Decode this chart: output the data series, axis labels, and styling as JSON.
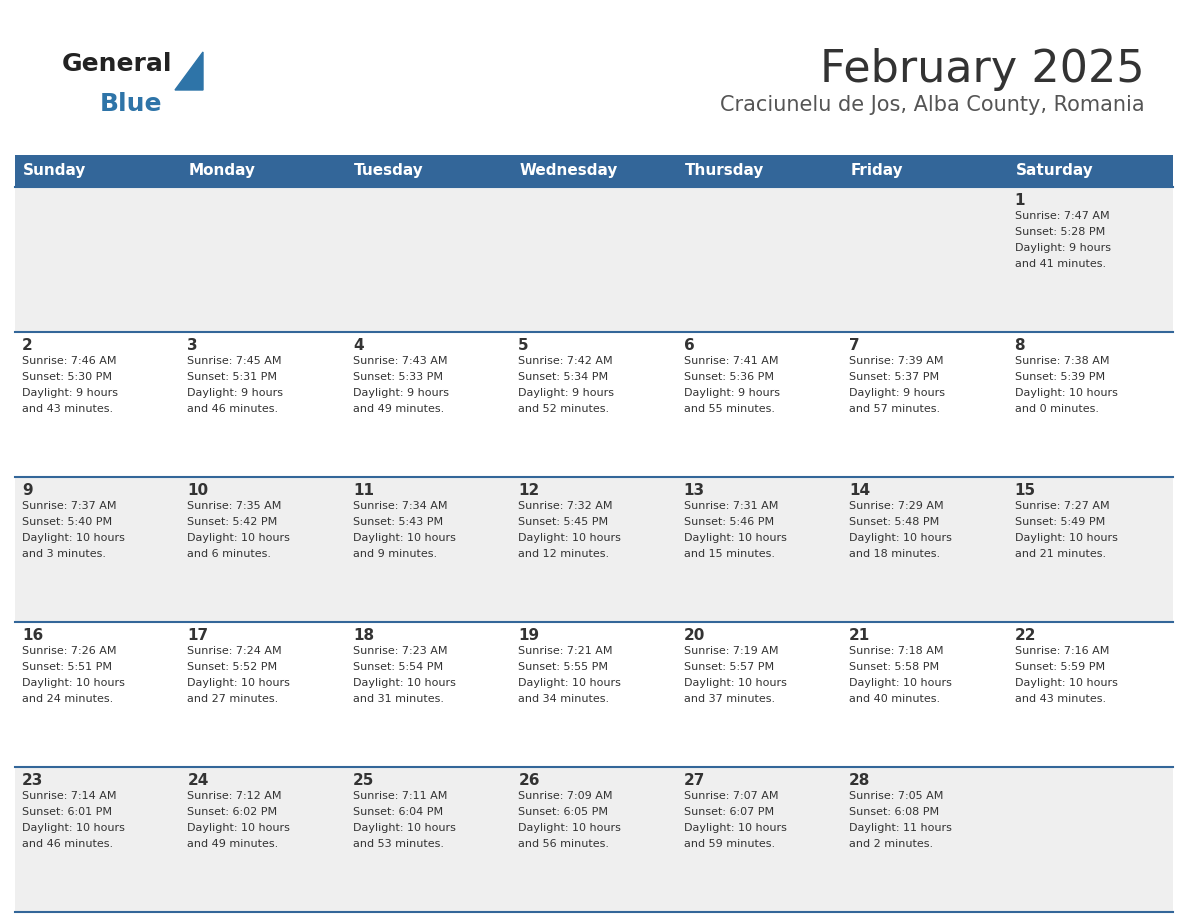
{
  "title": "February 2025",
  "subtitle": "Craciunelu de Jos, Alba County, Romania",
  "days_of_week": [
    "Sunday",
    "Monday",
    "Tuesday",
    "Wednesday",
    "Thursday",
    "Friday",
    "Saturday"
  ],
  "header_bg": "#336699",
  "header_text_color": "#FFFFFF",
  "row_bg_odd": "#EFEFEF",
  "row_bg_even": "#FFFFFF",
  "cell_border_color": "#336699",
  "title_color": "#333333",
  "subtitle_color": "#555555",
  "day_num_color": "#333333",
  "cell_text_color": "#333333",
  "logo_text_color": "#222222",
  "logo_blue_color": "#2E74A8",
  "calendar": [
    [
      null,
      null,
      null,
      null,
      null,
      null,
      {
        "day": 1,
        "sunrise": "7:47 AM",
        "sunset": "5:28 PM",
        "daylight": "9 hours\nand 41 minutes."
      }
    ],
    [
      {
        "day": 2,
        "sunrise": "7:46 AM",
        "sunset": "5:30 PM",
        "daylight": "9 hours\nand 43 minutes."
      },
      {
        "day": 3,
        "sunrise": "7:45 AM",
        "sunset": "5:31 PM",
        "daylight": "9 hours\nand 46 minutes."
      },
      {
        "day": 4,
        "sunrise": "7:43 AM",
        "sunset": "5:33 PM",
        "daylight": "9 hours\nand 49 minutes."
      },
      {
        "day": 5,
        "sunrise": "7:42 AM",
        "sunset": "5:34 PM",
        "daylight": "9 hours\nand 52 minutes."
      },
      {
        "day": 6,
        "sunrise": "7:41 AM",
        "sunset": "5:36 PM",
        "daylight": "9 hours\nand 55 minutes."
      },
      {
        "day": 7,
        "sunrise": "7:39 AM",
        "sunset": "5:37 PM",
        "daylight": "9 hours\nand 57 minutes."
      },
      {
        "day": 8,
        "sunrise": "7:38 AM",
        "sunset": "5:39 PM",
        "daylight": "10 hours\nand 0 minutes."
      }
    ],
    [
      {
        "day": 9,
        "sunrise": "7:37 AM",
        "sunset": "5:40 PM",
        "daylight": "10 hours\nand 3 minutes."
      },
      {
        "day": 10,
        "sunrise": "7:35 AM",
        "sunset": "5:42 PM",
        "daylight": "10 hours\nand 6 minutes."
      },
      {
        "day": 11,
        "sunrise": "7:34 AM",
        "sunset": "5:43 PM",
        "daylight": "10 hours\nand 9 minutes."
      },
      {
        "day": 12,
        "sunrise": "7:32 AM",
        "sunset": "5:45 PM",
        "daylight": "10 hours\nand 12 minutes."
      },
      {
        "day": 13,
        "sunrise": "7:31 AM",
        "sunset": "5:46 PM",
        "daylight": "10 hours\nand 15 minutes."
      },
      {
        "day": 14,
        "sunrise": "7:29 AM",
        "sunset": "5:48 PM",
        "daylight": "10 hours\nand 18 minutes."
      },
      {
        "day": 15,
        "sunrise": "7:27 AM",
        "sunset": "5:49 PM",
        "daylight": "10 hours\nand 21 minutes."
      }
    ],
    [
      {
        "day": 16,
        "sunrise": "7:26 AM",
        "sunset": "5:51 PM",
        "daylight": "10 hours\nand 24 minutes."
      },
      {
        "day": 17,
        "sunrise": "7:24 AM",
        "sunset": "5:52 PM",
        "daylight": "10 hours\nand 27 minutes."
      },
      {
        "day": 18,
        "sunrise": "7:23 AM",
        "sunset": "5:54 PM",
        "daylight": "10 hours\nand 31 minutes."
      },
      {
        "day": 19,
        "sunrise": "7:21 AM",
        "sunset": "5:55 PM",
        "daylight": "10 hours\nand 34 minutes."
      },
      {
        "day": 20,
        "sunrise": "7:19 AM",
        "sunset": "5:57 PM",
        "daylight": "10 hours\nand 37 minutes."
      },
      {
        "day": 21,
        "sunrise": "7:18 AM",
        "sunset": "5:58 PM",
        "daylight": "10 hours\nand 40 minutes."
      },
      {
        "day": 22,
        "sunrise": "7:16 AM",
        "sunset": "5:59 PM",
        "daylight": "10 hours\nand 43 minutes."
      }
    ],
    [
      {
        "day": 23,
        "sunrise": "7:14 AM",
        "sunset": "6:01 PM",
        "daylight": "10 hours\nand 46 minutes."
      },
      {
        "day": 24,
        "sunrise": "7:12 AM",
        "sunset": "6:02 PM",
        "daylight": "10 hours\nand 49 minutes."
      },
      {
        "day": 25,
        "sunrise": "7:11 AM",
        "sunset": "6:04 PM",
        "daylight": "10 hours\nand 53 minutes."
      },
      {
        "day": 26,
        "sunrise": "7:09 AM",
        "sunset": "6:05 PM",
        "daylight": "10 hours\nand 56 minutes."
      },
      {
        "day": 27,
        "sunrise": "7:07 AM",
        "sunset": "6:07 PM",
        "daylight": "10 hours\nand 59 minutes."
      },
      {
        "day": 28,
        "sunrise": "7:05 AM",
        "sunset": "6:08 PM",
        "daylight": "11 hours\nand 2 minutes."
      },
      null
    ]
  ]
}
